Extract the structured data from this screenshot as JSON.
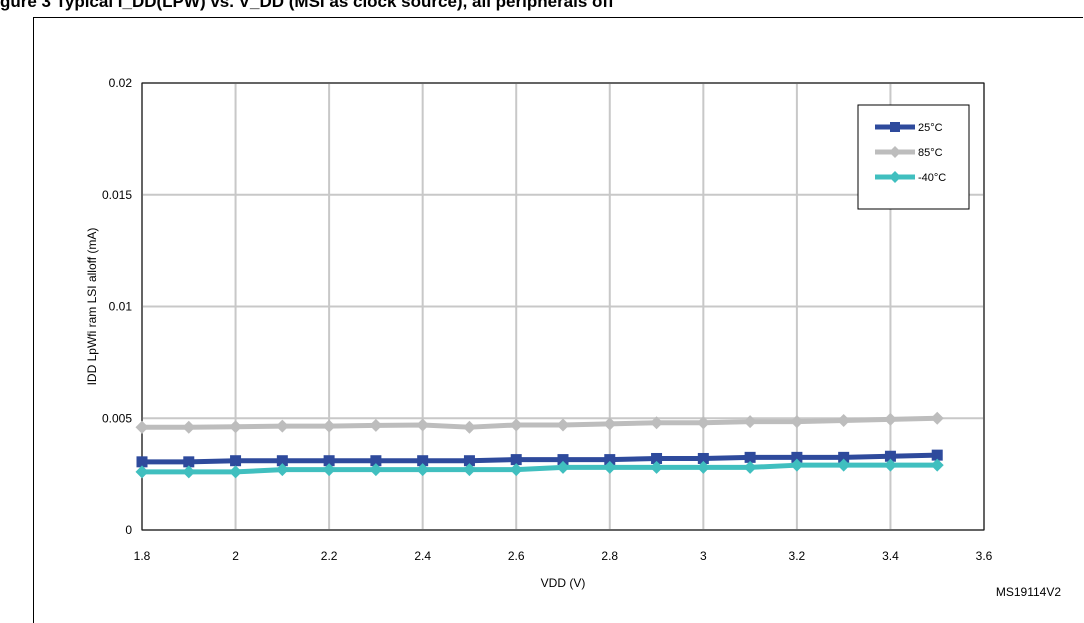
{
  "figure": {
    "title": "gure 3   Typical I_DD(LPW) vs. V_DD (MSI as clock source), all peripherals off",
    "id": "MS19114V2"
  },
  "chart_data": {
    "type": "line",
    "xlabel": "VDD (V)",
    "ylabel": "IDD LpWfi ram LSI alloff (mA)",
    "xlim": [
      1.8,
      3.6
    ],
    "ylim": [
      0,
      0.02
    ],
    "x_ticks": [
      "1.8",
      "2",
      "2.2",
      "2.4",
      "2.6",
      "2.8",
      "3",
      "3.2",
      "3.4",
      "3.6"
    ],
    "y_ticks": [
      "0",
      "0.005",
      "0.01",
      "0.015",
      "0.02"
    ],
    "grid": true,
    "legend_position": "top-right",
    "x": [
      1.8,
      1.9,
      2.0,
      2.1,
      2.2,
      2.3,
      2.4,
      2.5,
      2.6,
      2.7,
      2.8,
      2.9,
      3.0,
      3.1,
      3.2,
      3.3,
      3.4,
      3.5
    ],
    "series": [
      {
        "name": "25°C",
        "color": "#2E4A9C",
        "marker": "square",
        "values": [
          0.00305,
          0.00305,
          0.0031,
          0.0031,
          0.0031,
          0.0031,
          0.0031,
          0.0031,
          0.00315,
          0.00315,
          0.00315,
          0.0032,
          0.0032,
          0.00325,
          0.00325,
          0.00325,
          0.0033,
          0.00335
        ]
      },
      {
        "name": "85°C",
        "color": "#BDBDBD",
        "marker": "diamond",
        "values": [
          0.0046,
          0.0046,
          0.00462,
          0.00465,
          0.00465,
          0.00468,
          0.0047,
          0.0046,
          0.0047,
          0.0047,
          0.00475,
          0.0048,
          0.0048,
          0.00485,
          0.00485,
          0.0049,
          0.00495,
          0.005
        ]
      },
      {
        "name": "-40°C",
        "color": "#40BFBF",
        "marker": "diamond",
        "values": [
          0.0026,
          0.0026,
          0.0026,
          0.0027,
          0.0027,
          0.0027,
          0.0027,
          0.0027,
          0.0027,
          0.0028,
          0.0028,
          0.0028,
          0.0028,
          0.0028,
          0.0029,
          0.0029,
          0.0029,
          0.0029
        ]
      }
    ]
  }
}
